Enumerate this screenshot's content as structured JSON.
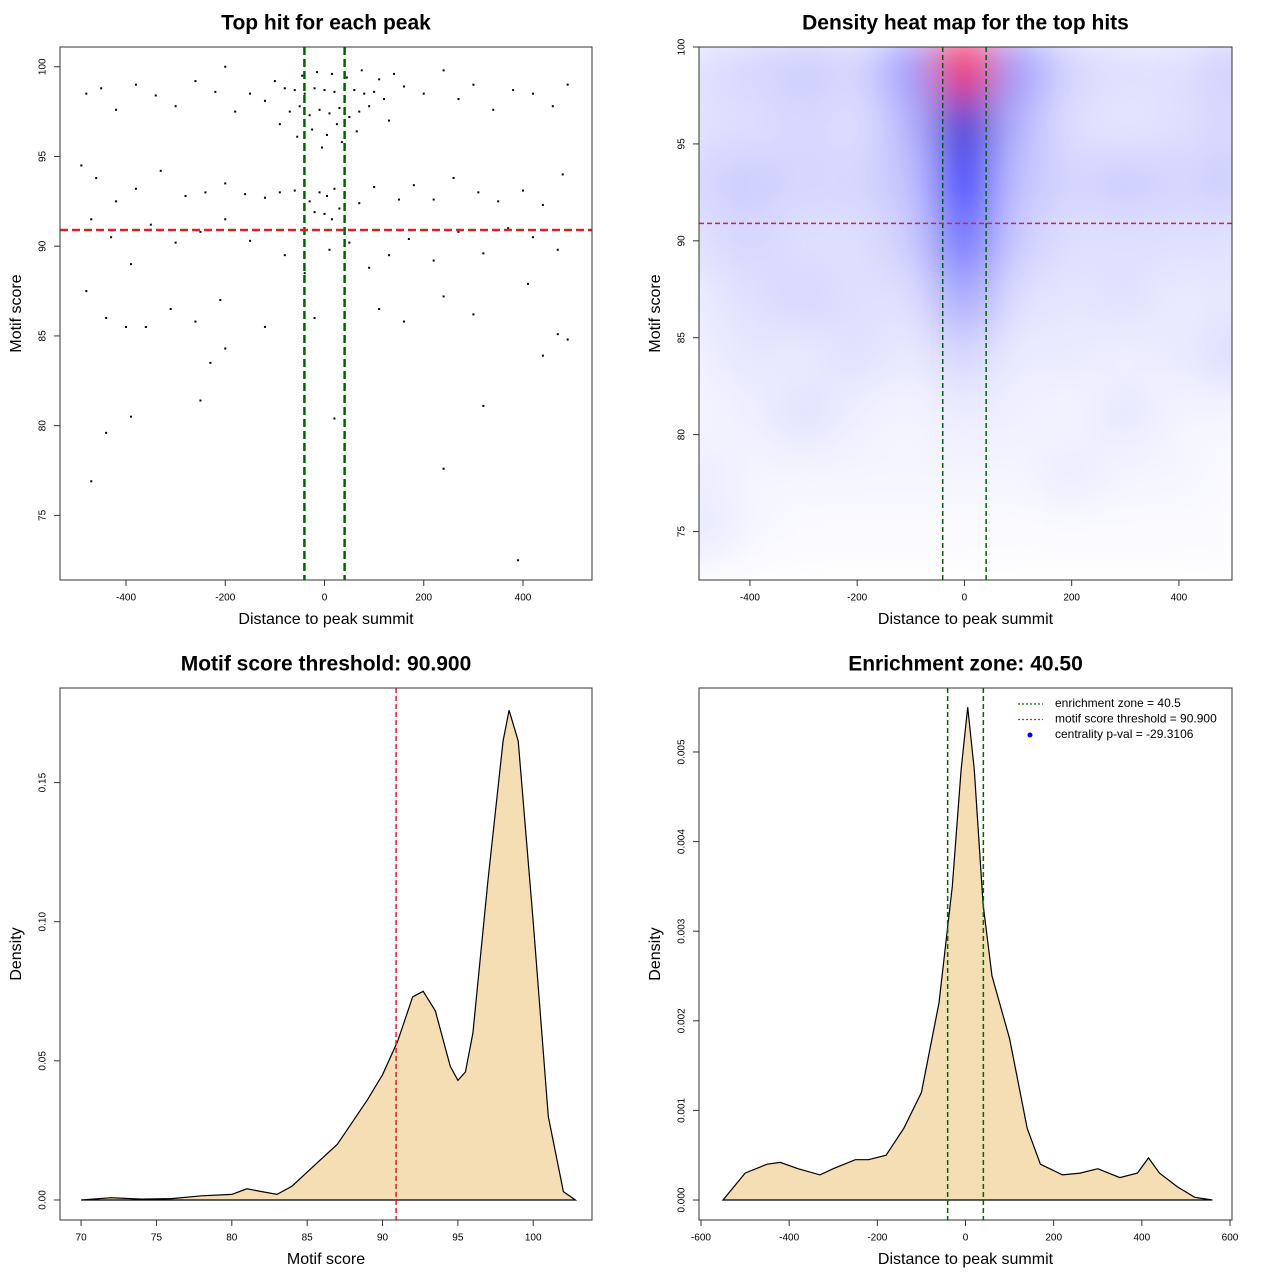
{
  "chart_data": [
    {
      "type": "scatter",
      "title": "Top hit for each peak",
      "xlabel": "Distance to peak summit",
      "ylabel": "Motif score",
      "xlim": [
        -533,
        539
      ],
      "ylim": [
        71.4,
        101.1
      ],
      "xticks": [
        -400,
        -200,
        0,
        200,
        400
      ],
      "yticks": [
        75,
        80,
        85,
        90,
        95,
        100
      ],
      "color": "#000000",
      "vlines": [
        -40.5,
        40.5
      ],
      "vline_color": "#006400",
      "hline": 90.9,
      "hline_color": "#dd2222",
      "x": [
        -80,
        -60,
        -40,
        -20,
        0,
        20,
        40,
        60,
        80,
        100,
        -70,
        -50,
        -30,
        -10,
        10,
        30,
        50,
        70,
        90,
        120,
        -100,
        -45,
        -15,
        15,
        45,
        75,
        110,
        140,
        -25,
        5,
        25,
        -5,
        35,
        -55,
        65,
        -90,
        130,
        160,
        -120,
        -150,
        -10,
        5,
        20,
        -30,
        40,
        -60,
        70,
        -90,
        100,
        -120,
        150,
        0,
        15,
        -20,
        30,
        -480,
        -450,
        -420,
        -380,
        -340,
        -300,
        -260,
        -220,
        -200,
        -180,
        200,
        240,
        270,
        300,
        340,
        380,
        420,
        460,
        490,
        -490,
        -460,
        -420,
        -380,
        -330,
        -280,
        -240,
        -200,
        -160,
        180,
        220,
        260,
        310,
        350,
        400,
        440,
        480,
        -470,
        -430,
        -390,
        -350,
        -300,
        -250,
        -200,
        -150,
        -80,
        -40,
        10,
        50,
        90,
        130,
        170,
        220,
        270,
        320,
        370,
        420,
        470,
        -480,
        -440,
        -400,
        -360,
        -310,
        -260,
        -210,
        -120,
        -20,
        40,
        110,
        160,
        240,
        300,
        410,
        440,
        470,
        490,
        -200,
        -230,
        -250,
        -390,
        -440,
        -470,
        240,
        320,
        20,
        390
      ],
      "y": [
        98.8,
        98.7,
        98.5,
        98.8,
        98.7,
        98.6,
        98.8,
        98.7,
        98.5,
        98.6,
        97.5,
        97.8,
        97.3,
        97.6,
        97.4,
        97.7,
        97.2,
        97.5,
        97.8,
        98.2,
        99.2,
        99.5,
        99.7,
        99.6,
        99.4,
        99.8,
        99.3,
        99.6,
        96.5,
        96.2,
        96.8,
        95.5,
        95.8,
        96.1,
        96.4,
        96.8,
        97.0,
        98.9,
        98.1,
        98.5,
        93.0,
        92.8,
        93.2,
        92.5,
        92.9,
        93.1,
        92.4,
        93.0,
        93.3,
        92.7,
        92.6,
        91.8,
        91.5,
        91.9,
        92.1,
        98.5,
        98.8,
        97.6,
        99.0,
        98.4,
        97.8,
        99.2,
        98.6,
        100,
        97.5,
        98.5,
        99.8,
        98.2,
        99.0,
        97.6,
        98.7,
        98.5,
        97.8,
        99.0,
        94.5,
        93.8,
        92.5,
        93.2,
        94.2,
        92.8,
        93.0,
        93.5,
        92.9,
        93.4,
        92.6,
        93.8,
        93.0,
        92.5,
        93.1,
        92.3,
        94.0,
        91.5,
        90.5,
        89.0,
        91.2,
        90.2,
        90.8,
        91.5,
        90.3,
        89.5,
        88.5,
        89.8,
        90.2,
        88.8,
        89.5,
        90.4,
        89.2,
        90.8,
        89.6,
        91.0,
        90.5,
        89.8,
        87.5,
        86.0,
        85.5,
        85.5,
        86.5,
        85.8,
        87.0,
        85.5,
        86.0,
        87.0,
        86.5,
        85.8,
        87.2,
        86.2,
        87.9,
        83.9,
        85.1,
        84.8,
        84.3,
        83.5,
        81.4,
        80.5,
        79.6,
        76.9,
        77.6,
        81.1,
        80.4,
        72.5
      ]
    },
    {
      "type": "heatmap",
      "title": "Density heat map for the top hits",
      "xlabel": "Distance to peak summit",
      "ylabel": "Motif score",
      "xlim": [
        -495,
        499
      ],
      "ylim": [
        72.5,
        100
      ],
      "xticks": [
        -400,
        -200,
        0,
        200,
        400
      ],
      "yticks": [
        75,
        80,
        85,
        90,
        95,
        100
      ],
      "vlines": [
        -40.5,
        40.5
      ],
      "vline_color": "#006400",
      "hline": 90.9,
      "hline_color": "#dd2222",
      "x": [
        -500,
        -400,
        -300,
        -200,
        -100,
        0,
        100,
        200,
        300,
        400,
        500
      ],
      "y": [
        99,
        96,
        93,
        90,
        87,
        84,
        81,
        78,
        75
      ],
      "z": [
        [
          0.06,
          0.08,
          0.1,
          0.08,
          0.2,
          1.0,
          0.2,
          0.08,
          0.06,
          0.06,
          0.1
        ],
        [
          0.06,
          0.06,
          0.08,
          0.06,
          0.15,
          0.6,
          0.15,
          0.06,
          0.05,
          0.06,
          0.08
        ],
        [
          0.08,
          0.1,
          0.08,
          0.08,
          0.12,
          0.45,
          0.12,
          0.08,
          0.1,
          0.08,
          0.1
        ],
        [
          0.06,
          0.08,
          0.06,
          0.06,
          0.1,
          0.3,
          0.1,
          0.06,
          0.06,
          0.06,
          0.06
        ],
        [
          0.04,
          0.06,
          0.08,
          0.06,
          0.06,
          0.18,
          0.06,
          0.05,
          0.06,
          0.04,
          0.05
        ],
        [
          0.03,
          0.05,
          0.04,
          0.06,
          0.04,
          0.08,
          0.04,
          0.04,
          0.03,
          0.04,
          0.07
        ],
        [
          0.02,
          0.03,
          0.06,
          0.03,
          0.02,
          0.04,
          0.03,
          0.02,
          0.05,
          0.02,
          0.02
        ],
        [
          0.04,
          0.02,
          0.02,
          0.02,
          0.02,
          0.02,
          0.02,
          0.04,
          0.02,
          0.02,
          0.01
        ],
        [
          0.05,
          0.02,
          0.01,
          0.01,
          0.01,
          0.01,
          0.01,
          0.01,
          0.01,
          0.01,
          0.01
        ]
      ],
      "colors": [
        "#ffffff",
        "#0000ff",
        "#ff0000"
      ]
    },
    {
      "type": "area",
      "title": "Motif score threshold: 90.900",
      "xlabel": "Motif score",
      "ylabel": "Density",
      "xlim": [
        68.6,
        103.9
      ],
      "ylim": [
        -0.0072,
        0.184
      ],
      "xticks": [
        70,
        75,
        80,
        85,
        90,
        95,
        100
      ],
      "yticks": [
        {
          "value": 0,
          "label": "0.00"
        },
        {
          "value": 0.05,
          "label": "0.05"
        },
        {
          "value": 0.1,
          "label": "0.10"
        },
        {
          "value": 0.15,
          "label": "0.15"
        }
      ],
      "color": "#f5deb3",
      "vlines": [
        90.9
      ],
      "vline_color": "#dd2222",
      "x": [
        70,
        72,
        74,
        76,
        78,
        80,
        81,
        82,
        83,
        84,
        85,
        86,
        87,
        88,
        89,
        90,
        91,
        92,
        92.7,
        93.5,
        94.5,
        95,
        95.5,
        96,
        97,
        98,
        98.4,
        99,
        100,
        101,
        102,
        102.8
      ],
      "y": [
        0,
        0.0008,
        0.0003,
        0.0005,
        0.0015,
        0.002,
        0.004,
        0.003,
        0.002,
        0.005,
        0.01,
        0.015,
        0.02,
        0.028,
        0.036,
        0.045,
        0.057,
        0.073,
        0.075,
        0.068,
        0.048,
        0.043,
        0.046,
        0.06,
        0.115,
        0.165,
        0.176,
        0.165,
        0.1,
        0.03,
        0.003,
        0
      ]
    },
    {
      "type": "area",
      "title": "Enrichment zone: 40.50",
      "xlabel": "Distance to peak summit",
      "ylabel": "Density",
      "xlim": [
        -604.5,
        604.5
      ],
      "ylim": [
        -0.000223,
        0.005714
      ],
      "xticks": [
        -600,
        -400,
        -200,
        0,
        200,
        400,
        600
      ],
      "yticks": [
        {
          "value": 0,
          "label": "0.000"
        },
        {
          "value": 0.001,
          "label": "0.001"
        },
        {
          "value": 0.002,
          "label": "0.002"
        },
        {
          "value": 0.003,
          "label": "0.003"
        },
        {
          "value": 0.004,
          "label": "0.004"
        },
        {
          "value": 0.005,
          "label": "0.005"
        }
      ],
      "color": "#f5deb3",
      "vlines": [
        -40.5,
        40.5
      ],
      "vline_color": "#006400",
      "x": [
        -550,
        -500,
        -450,
        -420,
        -380,
        -330,
        -300,
        -250,
        -220,
        -180,
        -140,
        -100,
        -60,
        -30,
        -10,
        5,
        20,
        40,
        60,
        100,
        140,
        170,
        220,
        260,
        300,
        350,
        390,
        415,
        440,
        480,
        520,
        560
      ],
      "y": [
        0,
        0.0003,
        0.0004,
        0.00042,
        0.00035,
        0.00028,
        0.00035,
        0.00045,
        0.00045,
        0.0005,
        0.0008,
        0.0012,
        0.0022,
        0.0035,
        0.0048,
        0.0055,
        0.0048,
        0.0033,
        0.0025,
        0.0018,
        0.0008,
        0.0004,
        0.00028,
        0.0003,
        0.00035,
        0.00025,
        0.0003,
        0.00047,
        0.0003,
        0.00015,
        3e-05,
        0
      ],
      "legend": [
        {
          "label": "enrichment zone = 40.5",
          "color": "#006400",
          "style": "dotted"
        },
        {
          "label": "motif score threshold = 90.900",
          "color": "#dd2222",
          "style": "dotted"
        },
        {
          "label": "centrality p-val = -29.3106",
          "color": "#0000ff",
          "style": "point"
        }
      ]
    }
  ]
}
